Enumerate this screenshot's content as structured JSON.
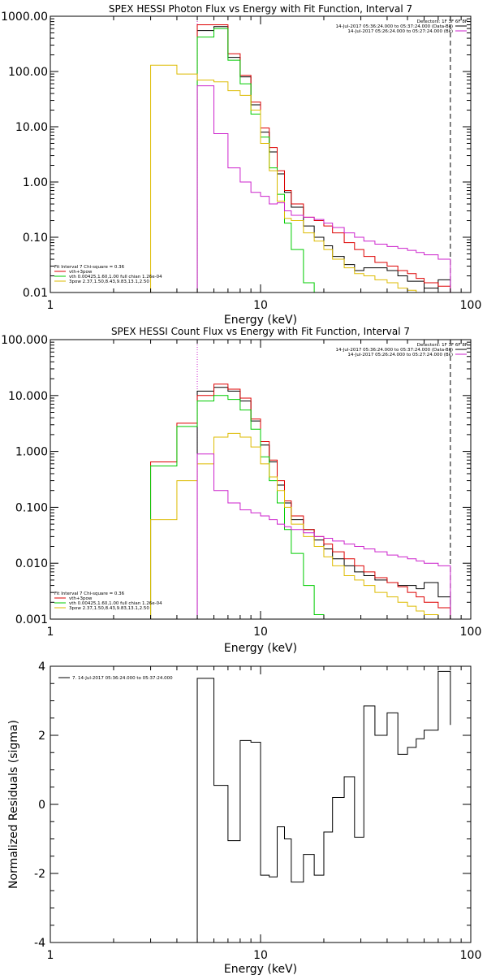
{
  "chart_data": [
    {
      "type": "line",
      "subtype": "step-histogram",
      "title": "SPEX HESSI Photon Flux vs Energy with Fit Function, Interval 7",
      "xlabel": "Energy (keV)",
      "ylabel": "",
      "xscale": "log",
      "yscale": "log",
      "xlim": [
        1,
        100
      ],
      "ylim": [
        0.01,
        1000
      ],
      "x_ticks": [
        "1",
        "10",
        "100"
      ],
      "y_ticks": [
        "0.01",
        "0.10",
        "1.00",
        "10.00",
        "100.00",
        "1000.00"
      ],
      "legend_top_right": {
        "header": "Detectors: 1F 3F 6F 8F",
        "entries": [
          {
            "text": "14-Jul-2017 05:36:24.000 to 05:37:24.000 (Data-Bk)",
            "color": "#000000"
          },
          {
            "text": "14-Jul-2017 05:26:24.000 to 05:27:24.000 (Bk)",
            "color": "#cc22cc"
          }
        ]
      },
      "legend_bottom_left": {
        "header": "Fit Interval  7    Chi-square = 0.36",
        "entries": [
          {
            "text": "vth+3pow",
            "color": "#dd0000"
          },
          {
            "text": "vth 0.00425,1.60,1.00  full chian 1.26e-04",
            "color": "#00cc00"
          },
          {
            "text": "3pow 2.37,1.50,8.43,9.83,13.1,2.50",
            "color": "#ddbb00"
          }
        ]
      },
      "edges": [
        3.0,
        4.0,
        5.0,
        6.0,
        7.0,
        8.0,
        9.0,
        10.0,
        11.0,
        12.0,
        13.0,
        14.0,
        16.0,
        18.0,
        20.0,
        22.0,
        25.0,
        28.0,
        31.0,
        35.0,
        40.0,
        45.0,
        50.0,
        55.0,
        60.0,
        70.0,
        80.0
      ],
      "vlines": [
        {
          "x": 5.0,
          "color": "#cc22cc",
          "style": "dotted"
        },
        {
          "x": 80.0,
          "color": "#000000",
          "style": "dashed"
        }
      ],
      "series": [
        {
          "name": "Data-Bk",
          "color": "#000000",
          "values": [
            null,
            null,
            550,
            650,
            180,
            80,
            25,
            8,
            3.5,
            1.4,
            0.65,
            0.35,
            0.16,
            0.1,
            0.07,
            0.045,
            0.032,
            0.025,
            0.028,
            0.028,
            0.025,
            0.02,
            0.016,
            0.016,
            0.012,
            0.017
          ]
        },
        {
          "name": "vth+3pow",
          "color": "#dd0000",
          "values": [
            null,
            null,
            700,
            700,
            210,
            85,
            28,
            9.5,
            4.2,
            1.6,
            0.7,
            0.4,
            0.23,
            0.2,
            0.16,
            0.12,
            0.08,
            0.06,
            0.045,
            0.035,
            0.03,
            0.025,
            0.022,
            0.018,
            0.015,
            0.013
          ]
        },
        {
          "name": "vth",
          "color": "#00cc00",
          "values": [
            null,
            null,
            420,
            600,
            160,
            60,
            17,
            6.5,
            1.8,
            0.6,
            0.18,
            0.06,
            0.015,
            0.0095,
            null,
            null,
            null,
            null,
            null,
            null,
            null,
            null,
            null,
            null,
            null,
            null
          ]
        },
        {
          "name": "3pow",
          "color": "#ddbb00",
          "values": [
            130,
            90,
            70,
            65,
            45,
            37,
            20,
            5.0,
            1.6,
            0.45,
            0.22,
            0.2,
            0.12,
            0.085,
            0.06,
            0.04,
            0.028,
            0.022,
            0.02,
            0.017,
            0.015,
            0.012,
            0.011,
            0.01,
            0.009,
            0.008
          ]
        },
        {
          "name": "Bk",
          "color": "#cc22cc",
          "values": [
            null,
            null,
            55,
            7.5,
            1.8,
            1.0,
            0.65,
            0.55,
            0.4,
            0.42,
            0.3,
            0.25,
            0.23,
            0.21,
            0.18,
            0.15,
            0.12,
            0.1,
            0.085,
            0.075,
            0.068,
            0.063,
            0.058,
            0.053,
            0.048,
            0.04
          ]
        }
      ]
    },
    {
      "type": "line",
      "subtype": "step-histogram",
      "title": "SPEX HESSI Count Flux vs Energy with Fit Function, Interval 7",
      "xlabel": "Energy (keV)",
      "ylabel": "",
      "xscale": "log",
      "yscale": "log",
      "xlim": [
        1,
        100
      ],
      "ylim": [
        0.001,
        100
      ],
      "x_ticks": [
        "1",
        "10",
        "100"
      ],
      "y_ticks": [
        "0.001",
        "0.010",
        "0.100",
        "1.000",
        "10.000",
        "100.000"
      ],
      "legend_top_right": {
        "header": "Detectors: 1F 3F 6F 8F",
        "entries": [
          {
            "text": "14-Jul-2017 05:36:24.000 to 05:37:24.000 (Data-Bk)",
            "color": "#000000"
          },
          {
            "text": "14-Jul-2017 05:26:24.000 to 05:27:24.000 (Bk)",
            "color": "#cc22cc"
          }
        ]
      },
      "legend_bottom_left": {
        "header": "Fit Interval  7    Chi-square = 0.36",
        "entries": [
          {
            "text": "vth+3pow",
            "color": "#dd0000"
          },
          {
            "text": "vth 0.00425,1.60,1.00  full chian 1.26e-04",
            "color": "#00cc00"
          },
          {
            "text": "3pow 2.37,1.50,8.43,9.83,13.1,2.50",
            "color": "#ddbb00"
          }
        ]
      },
      "edges": [
        3.0,
        4.0,
        5.0,
        6.0,
        7.0,
        8.0,
        9.0,
        10.0,
        11.0,
        12.0,
        13.0,
        14.0,
        16.0,
        18.0,
        20.0,
        22.0,
        25.0,
        28.0,
        31.0,
        35.0,
        40.0,
        45.0,
        50.0,
        55.0,
        60.0,
        70.0,
        80.0
      ],
      "vlines": [
        {
          "x": 5.0,
          "color": "#cc22cc",
          "style": "dotted"
        },
        {
          "x": 80.0,
          "color": "#000000",
          "style": "dashed"
        }
      ],
      "series": [
        {
          "name": "Data-Bk",
          "color": "#000000",
          "values": [
            null,
            null,
            12,
            14,
            12,
            8,
            3.5,
            1.3,
            0.65,
            0.25,
            0.12,
            0.06,
            0.04,
            0.026,
            0.018,
            0.012,
            0.009,
            0.007,
            0.006,
            0.005,
            0.0045,
            0.004,
            0.004,
            0.0035,
            0.0045,
            0.0025
          ]
        },
        {
          "name": "vth+3pow",
          "color": "#dd0000",
          "values": [
            0.65,
            3.2,
            10,
            16,
            13,
            9,
            3.8,
            1.5,
            0.7,
            0.3,
            0.13,
            0.07,
            0.04,
            0.03,
            0.022,
            0.016,
            0.012,
            0.009,
            0.007,
            0.0055,
            0.0045,
            0.0038,
            0.003,
            0.0025,
            0.002,
            0.0016
          ]
        },
        {
          "name": "vth",
          "color": "#00cc00",
          "values": [
            0.55,
            2.8,
            8,
            10,
            8.5,
            5.5,
            2.5,
            0.8,
            0.3,
            0.12,
            0.04,
            0.015,
            0.004,
            0.0012,
            null,
            null,
            null,
            null,
            null,
            null,
            null,
            null,
            null,
            null,
            null,
            null
          ]
        },
        {
          "name": "3pow",
          "color": "#ddbb00",
          "values": [
            0.06,
            0.3,
            0.6,
            1.8,
            2.1,
            1.8,
            1.2,
            0.6,
            0.35,
            0.2,
            0.1,
            0.05,
            0.03,
            0.02,
            0.013,
            0.009,
            0.006,
            0.005,
            0.004,
            0.003,
            0.0025,
            0.002,
            0.0017,
            0.0014,
            0.0012,
            0.001
          ]
        },
        {
          "name": "Bk",
          "color": "#cc22cc",
          "values": [
            null,
            null,
            0.9,
            0.2,
            0.12,
            0.09,
            0.08,
            0.07,
            0.06,
            0.05,
            0.045,
            0.04,
            0.035,
            0.03,
            0.028,
            0.025,
            0.022,
            0.02,
            0.018,
            0.016,
            0.014,
            0.013,
            0.012,
            0.011,
            0.01,
            0.009
          ]
        }
      ]
    },
    {
      "type": "line",
      "subtype": "step-histogram",
      "title": "",
      "xlabel": "Energy (keV)",
      "ylabel": "Normalized Residuals (sigma)",
      "xscale": "log",
      "yscale": "linear",
      "xlim": [
        1,
        100
      ],
      "ylim": [
        -4,
        4
      ],
      "x_ticks": [
        "1",
        "10",
        "100"
      ],
      "y_ticks": [
        "-4",
        "-2",
        "0",
        "2",
        "4"
      ],
      "legend_top_left": {
        "entries": [
          {
            "text": "7. 14-Jul-2017 05:36:24.000 to 05:37:24.000",
            "color": "#000000"
          }
        ]
      },
      "edges": [
        5.0,
        6.0,
        7.0,
        8.0,
        9.0,
        10.0,
        11.0,
        12.0,
        13.0,
        14.0,
        16.0,
        18.0,
        20.0,
        22.0,
        25.0,
        28.0,
        31.0,
        35.0,
        40.0,
        45.0,
        50.0,
        55.0,
        60.0,
        70.0,
        80.0
      ],
      "series": [
        {
          "name": "7. 14-Jul-2017 05:36:24.000 to 05:37:24.000",
          "color": "#000000",
          "values": [
            3.65,
            0.55,
            -1.05,
            1.85,
            1.8,
            -2.05,
            -2.1,
            -0.65,
            -1.0,
            -2.25,
            -1.45,
            -2.05,
            -0.8,
            0.2,
            0.8,
            -0.95,
            2.85,
            2.0,
            2.65,
            1.45,
            1.65,
            1.9,
            2.15,
            3.85,
            2.3
          ]
        }
      ]
    }
  ]
}
